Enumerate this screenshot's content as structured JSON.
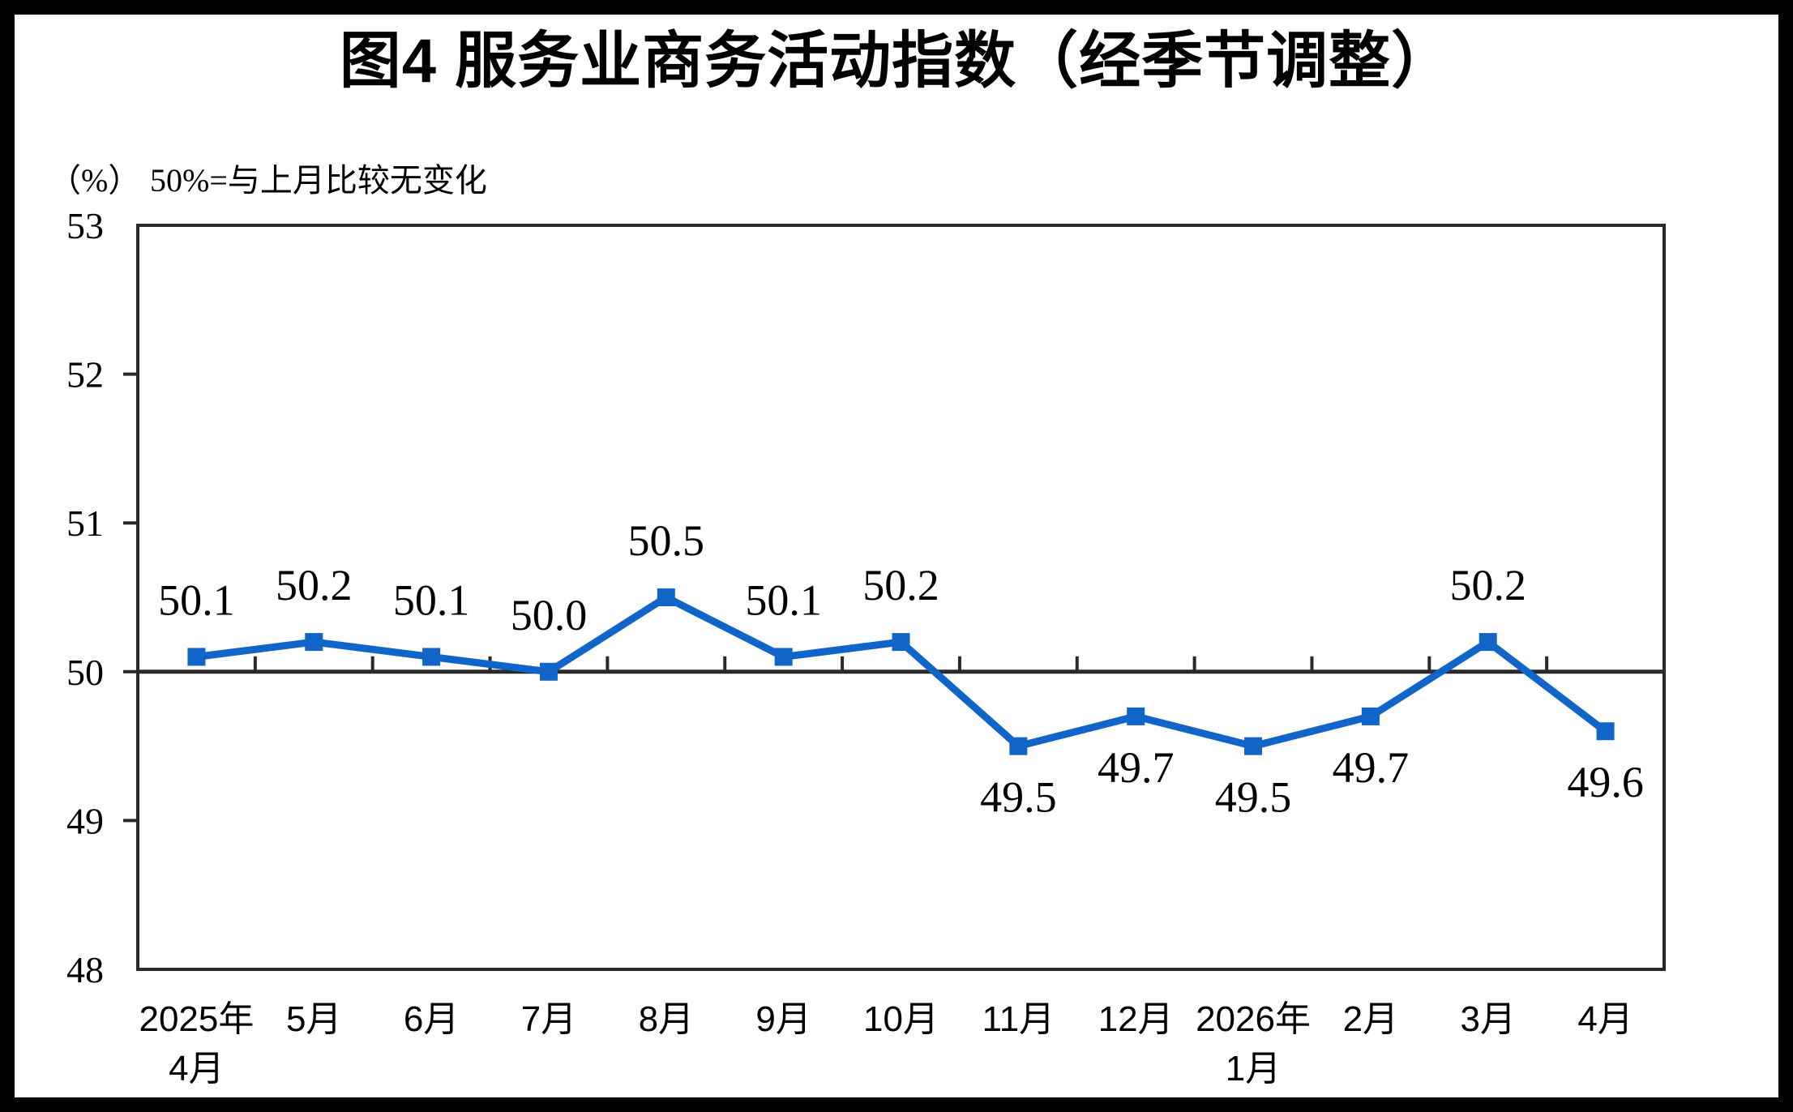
{
  "chart_data": {
    "type": "line",
    "title": "图4  服务业商务活动指数（经季节调整）",
    "unit_label": "（%）",
    "axis_note": "50%=与上月比较无变化",
    "categories": [
      "2025年\n4月",
      "5月",
      "6月",
      "7月",
      "8月",
      "9月",
      "10月",
      "11月",
      "12月",
      "2026年\n1月",
      "2月",
      "3月",
      "4月"
    ],
    "values": [
      50.1,
      50.2,
      50.1,
      50.0,
      50.5,
      50.1,
      50.2,
      49.5,
      49.7,
      49.5,
      49.7,
      50.2,
      49.6
    ],
    "data_labels": [
      "50.1",
      "50.2",
      "50.1",
      "50.0",
      "50.5",
      "50.1",
      "50.2",
      "49.5",
      "49.7",
      "49.5",
      "49.7",
      "50.2",
      "49.6"
    ],
    "xlabel": "",
    "ylabel": "(%)",
    "ylim": [
      48,
      53
    ],
    "yticks": [
      48,
      49,
      50,
      51,
      52,
      53
    ],
    "axis_crosses_at": 50,
    "grid": false,
    "legend_position": "none",
    "colors": {
      "line": "#1164C8",
      "marker": "#1164C8",
      "axis": "#2A2A2A",
      "text": "#000000",
      "background": "#FFFFFF",
      "frame": "#000000"
    }
  }
}
